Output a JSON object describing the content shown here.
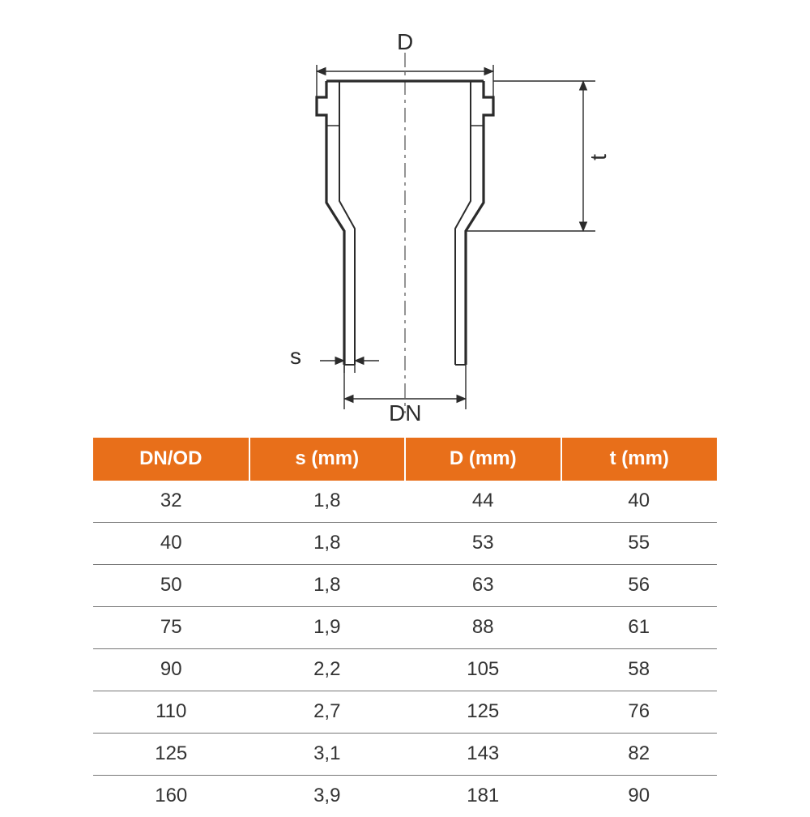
{
  "diagram": {
    "labels": {
      "D": "D",
      "t": "t",
      "s": "s",
      "DN": "DN"
    },
    "stroke_color": "#2b2b2b",
    "centerline_color": "#2b2b2b",
    "line_width_heavy": 3,
    "line_width_thin": 1.2
  },
  "table": {
    "header_bg": "#e86f1a",
    "header_fg": "#ffffff",
    "row_border": "#777777",
    "columns": [
      "DN/OD",
      "s (mm)",
      "D (mm)",
      "t (mm)"
    ],
    "rows": [
      [
        "32",
        "1,8",
        "44",
        "40"
      ],
      [
        "40",
        "1,8",
        "53",
        "55"
      ],
      [
        "50",
        "1,8",
        "63",
        "56"
      ],
      [
        "75",
        "1,9",
        "88",
        "61"
      ],
      [
        "90",
        "2,2",
        "105",
        "58"
      ],
      [
        "110",
        "2,7",
        "125",
        "76"
      ],
      [
        "125",
        "3,1",
        "143",
        "82"
      ],
      [
        "160",
        "3,9",
        "181",
        "90"
      ]
    ]
  }
}
